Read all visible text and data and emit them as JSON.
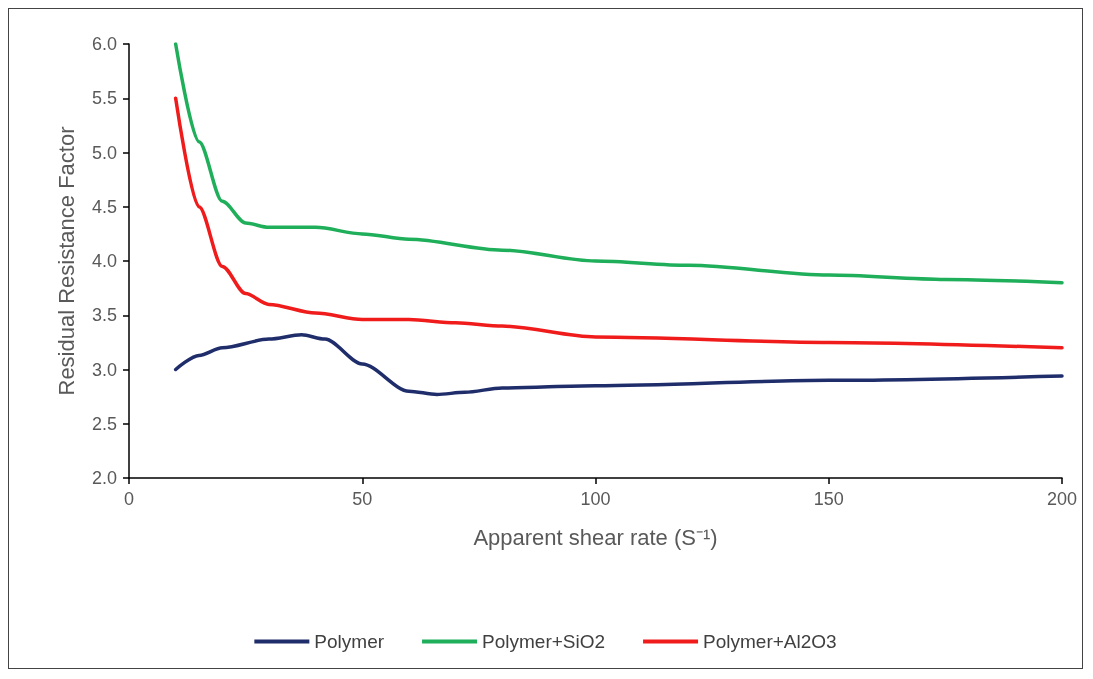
{
  "chart_data": {
    "type": "line",
    "xlabel": "Apparent shear rate (S⁻¹)",
    "ylabel": "Residual Resistance Factor",
    "xlim": [
      0,
      200
    ],
    "xticks": [
      0,
      50,
      100,
      150,
      200
    ],
    "ylim": [
      2.0,
      6.0
    ],
    "yticks": [
      {
        "value": 2,
        "label": "2.0"
      },
      {
        "value": 2.5,
        "label": "2.5"
      },
      {
        "value": 3,
        "label": "3.0"
      },
      {
        "value": 3.5,
        "label": "3.5"
      },
      {
        "value": 4,
        "label": "4.0"
      },
      {
        "value": 4.5,
        "label": "4.5"
      },
      {
        "value": 5,
        "label": "5.0"
      },
      {
        "value": 5.5,
        "label": "5.5"
      },
      {
        "value": 6,
        "label": "6.0"
      }
    ],
    "grid": false,
    "legend": "bottom",
    "marker": "none",
    "line_style": "solid",
    "series": [
      {
        "name": "Polymer",
        "color": "#1f2d6b",
        "x": [
          10,
          15,
          20,
          30,
          37,
          42,
          50,
          60,
          66,
          72,
          80,
          100,
          150,
          200
        ],
        "values": [
          3.0,
          3.13,
          3.2,
          3.28,
          3.32,
          3.28,
          3.05,
          2.8,
          2.77,
          2.79,
          2.83,
          2.85,
          2.9,
          2.94
        ]
      },
      {
        "name": "Polymer+SiO2",
        "color": "#1fae5a",
        "x": [
          10,
          15,
          20,
          25,
          30,
          40,
          50,
          60,
          80,
          100,
          120,
          150,
          175,
          200
        ],
        "values": [
          6.0,
          5.1,
          4.55,
          4.35,
          4.31,
          4.31,
          4.25,
          4.2,
          4.1,
          4.0,
          3.96,
          3.87,
          3.83,
          3.8
        ]
      },
      {
        "name": "Polymer+Al2O3",
        "color": "#f01c1c",
        "x": [
          10,
          15,
          20,
          25,
          30,
          40,
          50,
          60,
          70,
          80,
          100,
          150,
          200
        ],
        "values": [
          5.5,
          4.5,
          3.95,
          3.7,
          3.6,
          3.52,
          3.46,
          3.46,
          3.43,
          3.4,
          3.3,
          3.25,
          3.2
        ]
      }
    ]
  }
}
